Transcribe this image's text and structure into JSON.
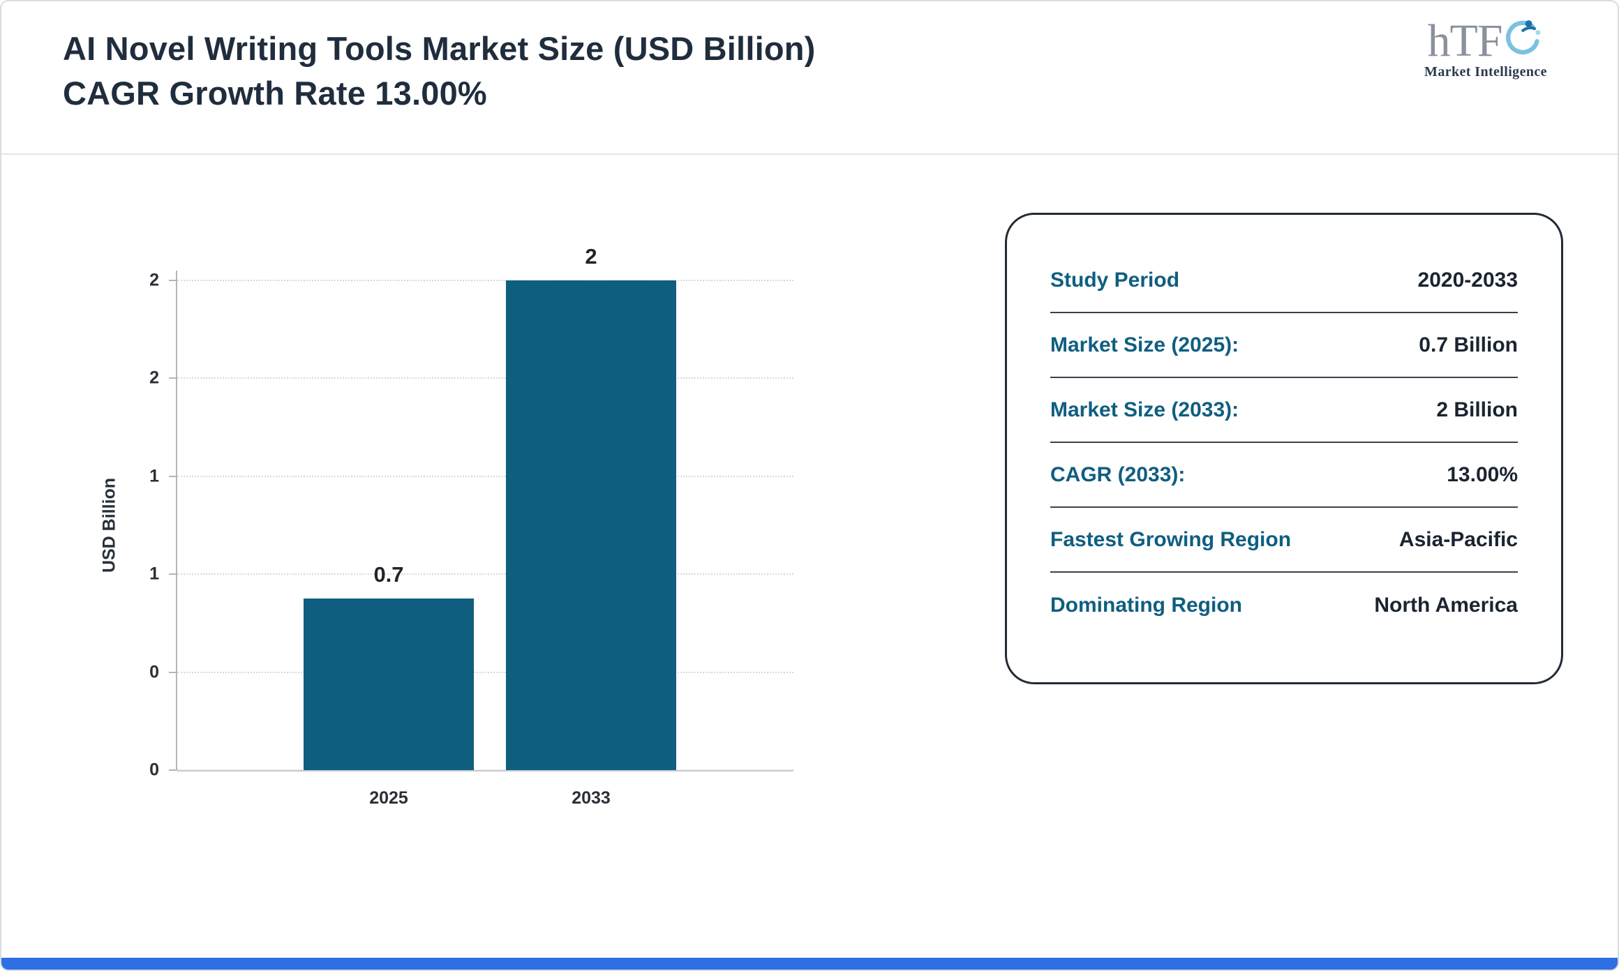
{
  "header": {
    "title_line1": "AI Novel Writing Tools Market Size (USD Billion)",
    "title_line2": "CAGR Growth Rate 13.00%",
    "logo": {
      "text": "hTF",
      "subtext": "Market Intelligence"
    }
  },
  "chart_data": {
    "type": "bar",
    "categories": [
      "2025",
      "2033"
    ],
    "values": [
      0.7,
      2
    ],
    "value_labels": [
      "0.7",
      "2"
    ],
    "title": "AI Novel Writing Tools Market Size (USD Billion) CAGR Growth Rate 13.00%",
    "xlabel": "",
    "ylabel": "USD Billion",
    "ylim": [
      0,
      2
    ],
    "grid": true,
    "legend": "none",
    "y_ticks": [
      {
        "value": 0.0,
        "label": "0"
      },
      {
        "value": 0.4,
        "label": "0"
      },
      {
        "value": 0.8,
        "label": "1"
      },
      {
        "value": 1.2,
        "label": "1"
      },
      {
        "value": 1.6,
        "label": "2"
      },
      {
        "value": 2.0,
        "label": "2"
      }
    ],
    "bar_color": "#0f5e80"
  },
  "card": {
    "rows": [
      {
        "label": "Study Period",
        "value": "2020-2033"
      },
      {
        "label": "Market Size (2025):",
        "value": "0.7 Billion"
      },
      {
        "label": "Market Size (2033):",
        "value": "2 Billion"
      },
      {
        "label": "CAGR (2033):",
        "value": "13.00%"
      },
      {
        "label": "Fastest Growing Region",
        "value": "Asia-Pacific"
      },
      {
        "label": "Dominating Region",
        "value": "North America"
      }
    ]
  },
  "colors": {
    "accent_teal": "#0f5e80",
    "value_navy": "#1b2430",
    "footer_blue": "#2e6fe3"
  }
}
